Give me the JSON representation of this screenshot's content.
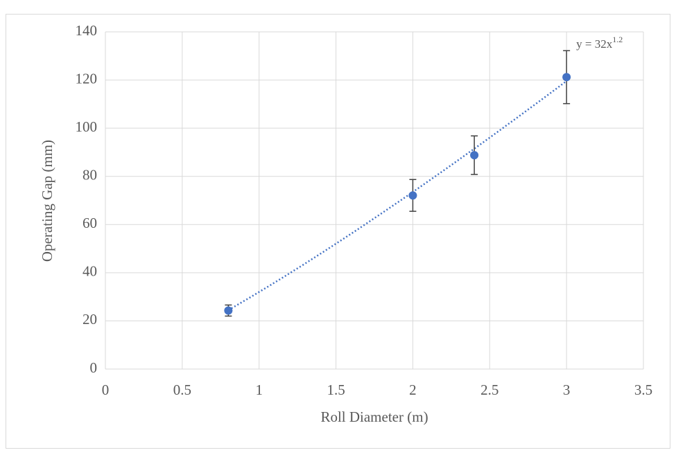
{
  "chart_data": {
    "type": "scatter",
    "x_label": "Roll Diameter (m)",
    "y_label": "Operating Gap (mm)",
    "xlim": [
      0,
      3.5
    ],
    "xticks": [
      0,
      0.5,
      1,
      1.5,
      2,
      2.5,
      3,
      3.5
    ],
    "ylim": [
      0,
      140
    ],
    "yticks": [
      0,
      20,
      40,
      60,
      80,
      100,
      120,
      140
    ],
    "grid": true,
    "series": [
      {
        "color": "#4472c4",
        "x": [
          0.8,
          2,
          2.4,
          3
        ],
        "values": [
          24.3,
          72.1,
          88.8,
          121.2
        ],
        "errors": [
          2.3,
          6.6,
          8,
          11
        ]
      }
    ],
    "error_color": "#404040",
    "trendline": {
      "type": "power",
      "coefficient": 32,
      "exponent": 1.2,
      "color": "#4472c4",
      "label": "y = 32x"
    }
  }
}
